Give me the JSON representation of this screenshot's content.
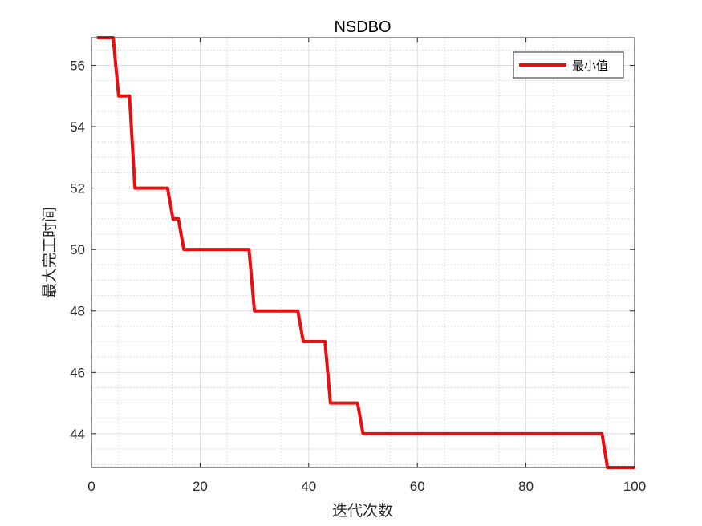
{
  "chart_data": {
    "type": "line",
    "title": "NSDBO",
    "xlabel": "迭代次数",
    "ylabel": "最大完工时间",
    "xlim": [
      0,
      100
    ],
    "ylim": [
      42.9,
      56.9
    ],
    "xticks": [
      0,
      20,
      40,
      60,
      80,
      100
    ],
    "yticks": [
      44,
      46,
      48,
      50,
      52,
      54,
      56
    ],
    "grid": true,
    "minor_grid": true,
    "legend": {
      "position": "top-right",
      "entries": [
        "最小值"
      ]
    },
    "series": [
      {
        "name": "最小值",
        "color": "#e61010",
        "x": [
          1,
          4,
          5,
          7,
          8,
          14,
          15,
          16,
          17,
          29,
          30,
          38,
          39,
          43,
          44,
          49,
          50,
          94,
          95,
          100
        ],
        "y": [
          56.9,
          56.9,
          55,
          55,
          52,
          52,
          51,
          51,
          50,
          50,
          48,
          48,
          47,
          47,
          45,
          45,
          44,
          44,
          42.9,
          42.9
        ]
      }
    ]
  }
}
